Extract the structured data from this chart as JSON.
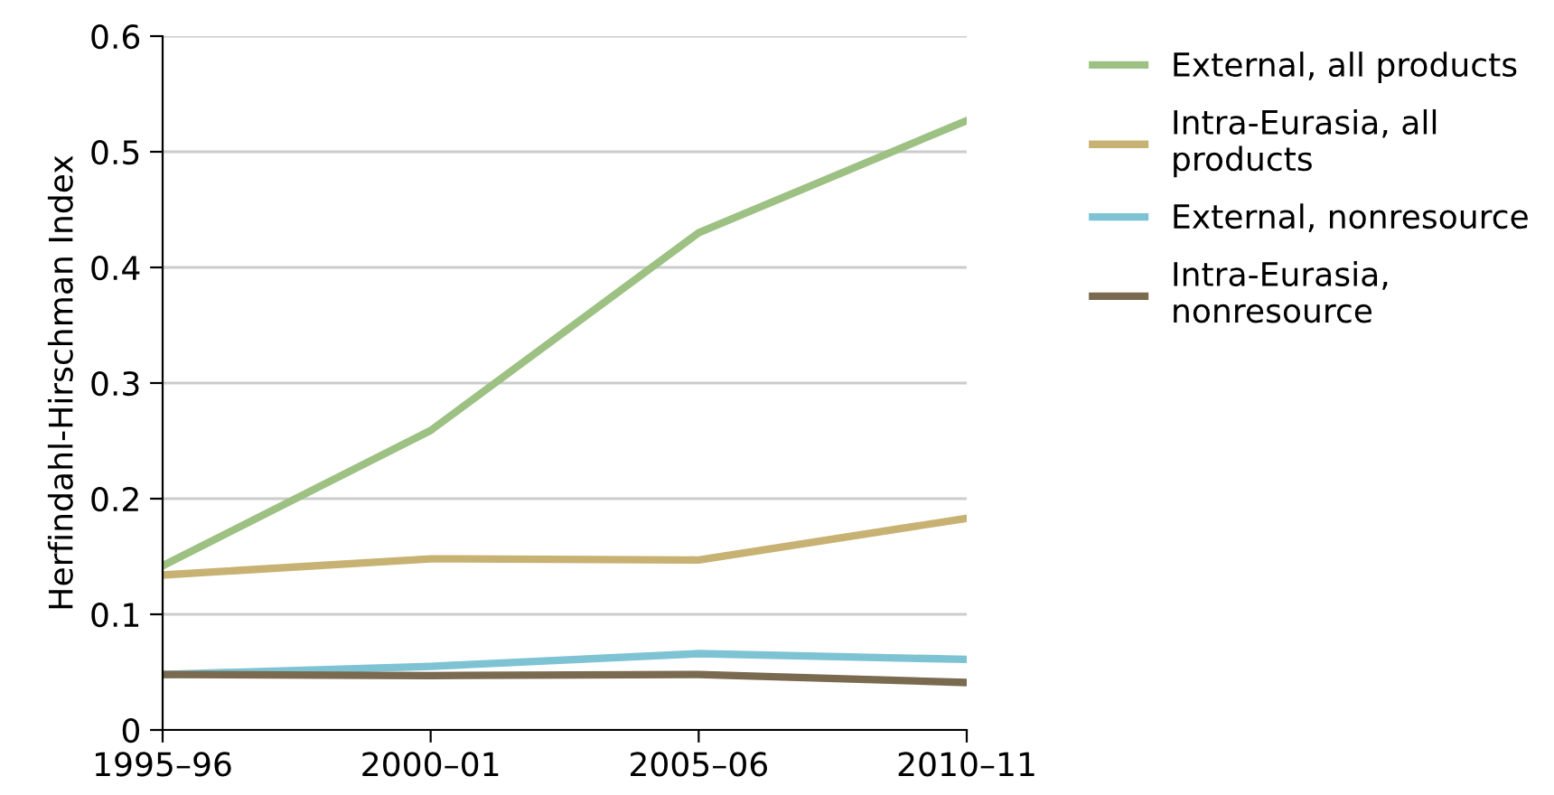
{
  "chart_data": {
    "type": "line",
    "ylabel": "Herfindahl-Hirschman Index",
    "categories": [
      "1995–96",
      "2000–01",
      "2005–06",
      "2010–11"
    ],
    "series": [
      {
        "name": "External, all products",
        "color": "#9dc183",
        "values": [
          0.142,
          0.259,
          0.43,
          0.527
        ]
      },
      {
        "name": "Intra-Eurasia, all products",
        "color": "#c8b273",
        "values": [
          0.134,
          0.148,
          0.147,
          0.183
        ]
      },
      {
        "name": "External, nonresource",
        "color": "#7ec3d3",
        "values": [
          0.048,
          0.055,
          0.066,
          0.061
        ]
      },
      {
        "name": "Intra-Eurasia, nonresource",
        "color": "#7a6a50",
        "values": [
          0.048,
          0.047,
          0.048,
          0.041
        ]
      }
    ],
    "ylim": [
      0,
      0.6
    ],
    "yticks": [
      0,
      0.1,
      0.2,
      0.3,
      0.4,
      0.5,
      0.6
    ],
    "grid": "y",
    "legend": "right",
    "marker": "none",
    "line_style": "solid"
  }
}
